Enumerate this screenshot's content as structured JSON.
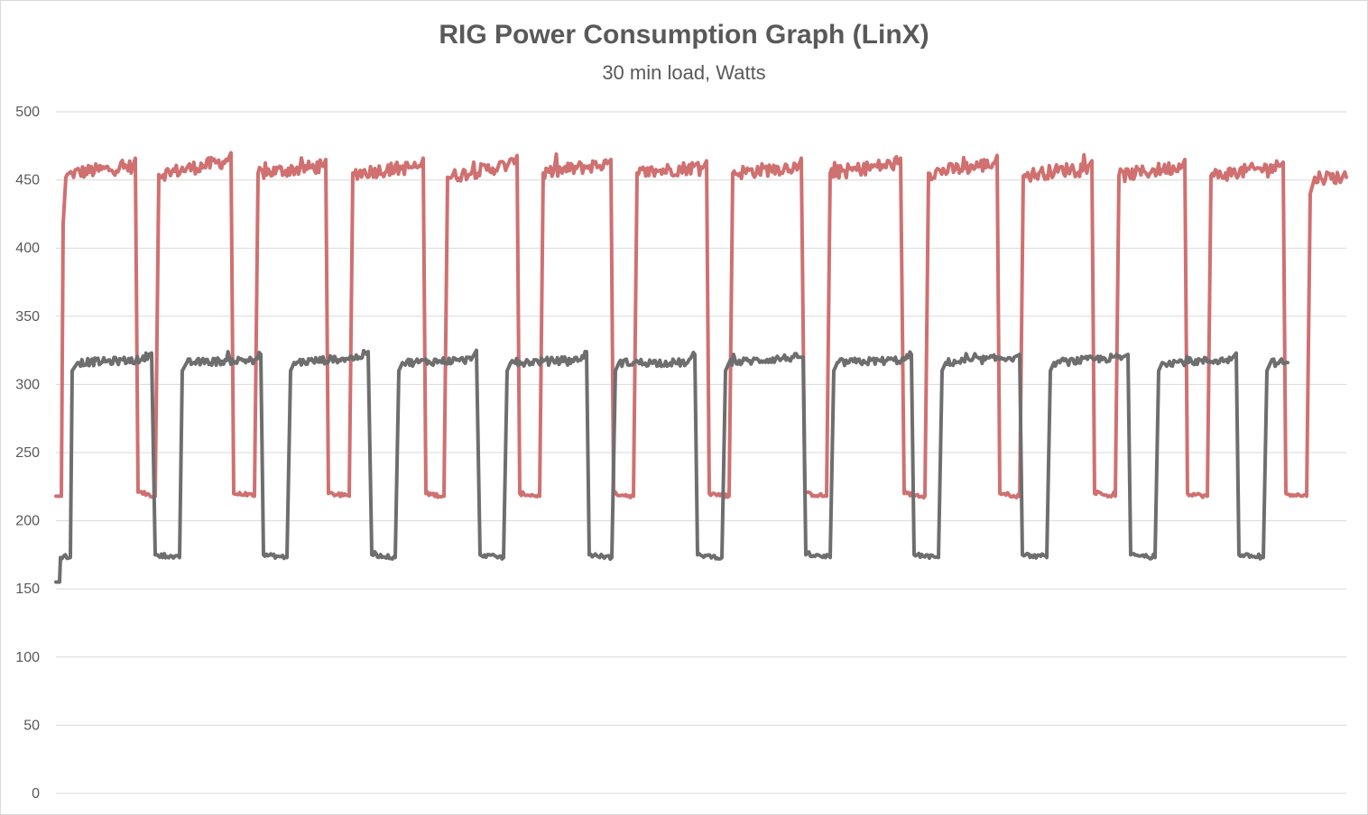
{
  "chart_data": {
    "type": "line",
    "title": "RIG Power Consumption Graph (LinX)",
    "subtitle": "30 min load, Watts",
    "xlabel": "",
    "ylabel": "",
    "ylim": [
      0,
      500
    ],
    "yticks": [
      0,
      50,
      100,
      150,
      200,
      250,
      300,
      350,
      400,
      450,
      500
    ],
    "grid": true,
    "x_range": [
      0,
      1430
    ],
    "series": [
      {
        "color": "#d07070",
        "points": [
          [
            0,
            218
          ],
          [
            6,
            218
          ],
          [
            8,
            418
          ],
          [
            11,
            452
          ],
          [
            18,
            455
          ],
          [
            85,
            460
          ],
          [
            88,
            466
          ],
          [
            91,
            221
          ],
          [
            110,
            218
          ],
          [
            114,
            454
          ],
          [
            190,
            464
          ],
          [
            194,
            470
          ],
          [
            197,
            220
          ],
          [
            220,
            218
          ],
          [
            224,
            455
          ],
          [
            296,
            460
          ],
          [
            299,
            465
          ],
          [
            302,
            220
          ],
          [
            325,
            218
          ],
          [
            329,
            455
          ],
          [
            404,
            460
          ],
          [
            407,
            466
          ],
          [
            410,
            220
          ],
          [
            430,
            218
          ],
          [
            434,
            452
          ],
          [
            508,
            462
          ],
          [
            511,
            468
          ],
          [
            514,
            220
          ],
          [
            536,
            218
          ],
          [
            540,
            455
          ],
          [
            611,
            462
          ],
          [
            615,
            465
          ],
          [
            618,
            220
          ],
          [
            640,
            218
          ],
          [
            644,
            455
          ],
          [
            718,
            460
          ],
          [
            721,
            464
          ],
          [
            724,
            220
          ],
          [
            746,
            218
          ],
          [
            750,
            455
          ],
          [
            823,
            460
          ],
          [
            826,
            466
          ],
          [
            830,
            220
          ],
          [
            854,
            218
          ],
          [
            858,
            455
          ],
          [
            933,
            462
          ],
          [
            936,
            466
          ],
          [
            940,
            220
          ],
          [
            963,
            218
          ],
          [
            967,
            455
          ],
          [
            1040,
            462
          ],
          [
            1043,
            468
          ],
          [
            1046,
            220
          ],
          [
            1068,
            218
          ],
          [
            1072,
            453
          ],
          [
            1144,
            460
          ],
          [
            1148,
            464
          ],
          [
            1151,
            220
          ],
          [
            1174,
            218
          ],
          [
            1178,
            453
          ],
          [
            1248,
            460
          ],
          [
            1251,
            465
          ],
          [
            1254,
            220
          ],
          [
            1276,
            218
          ],
          [
            1280,
            453
          ],
          [
            1356,
            460
          ],
          [
            1360,
            463
          ],
          [
            1363,
            220
          ],
          [
            1386,
            218
          ],
          [
            1390,
            440
          ],
          [
            1395,
            452
          ],
          [
            1430,
            452
          ]
        ]
      },
      {
        "color": "#6e6e6e",
        "points": [
          [
            0,
            155
          ],
          [
            4,
            155
          ],
          [
            5,
            173
          ],
          [
            16,
            173
          ],
          [
            18,
            310
          ],
          [
            24,
            316
          ],
          [
            95,
            318
          ],
          [
            103,
            322
          ],
          [
            106,
            323
          ],
          [
            110,
            175
          ],
          [
            137,
            173
          ],
          [
            140,
            310
          ],
          [
            145,
            316
          ],
          [
            220,
            318
          ],
          [
            227,
            322
          ],
          [
            230,
            175
          ],
          [
            256,
            173
          ],
          [
            260,
            310
          ],
          [
            264,
            316
          ],
          [
            336,
            320
          ],
          [
            346,
            324
          ],
          [
            350,
            175
          ],
          [
            376,
            173
          ],
          [
            380,
            310
          ],
          [
            384,
            316
          ],
          [
            460,
            318
          ],
          [
            466,
            325
          ],
          [
            470,
            175
          ],
          [
            496,
            173
          ],
          [
            500,
            310
          ],
          [
            504,
            316
          ],
          [
            580,
            318
          ],
          [
            588,
            324
          ],
          [
            591,
            175
          ],
          [
            616,
            173
          ],
          [
            620,
            310
          ],
          [
            624,
            316
          ],
          [
            700,
            316
          ],
          [
            708,
            322
          ],
          [
            711,
            175
          ],
          [
            738,
            173
          ],
          [
            742,
            310
          ],
          [
            746,
            316
          ],
          [
            822,
            320
          ],
          [
            828,
            320
          ],
          [
            831,
            175
          ],
          [
            858,
            173
          ],
          [
            862,
            310
          ],
          [
            866,
            316
          ],
          [
            940,
            318
          ],
          [
            948,
            322
          ],
          [
            951,
            175
          ],
          [
            978,
            173
          ],
          [
            982,
            310
          ],
          [
            986,
            316
          ],
          [
            1062,
            320
          ],
          [
            1068,
            322
          ],
          [
            1071,
            175
          ],
          [
            1098,
            173
          ],
          [
            1102,
            310
          ],
          [
            1106,
            316
          ],
          [
            1182,
            320
          ],
          [
            1188,
            322
          ],
          [
            1191,
            175
          ],
          [
            1218,
            173
          ],
          [
            1222,
            310
          ],
          [
            1226,
            316
          ],
          [
            1302,
            318
          ],
          [
            1308,
            323
          ],
          [
            1311,
            175
          ],
          [
            1338,
            173
          ],
          [
            1342,
            310
          ],
          [
            1346,
            316
          ],
          [
            1365,
            316
          ]
        ]
      }
    ]
  }
}
